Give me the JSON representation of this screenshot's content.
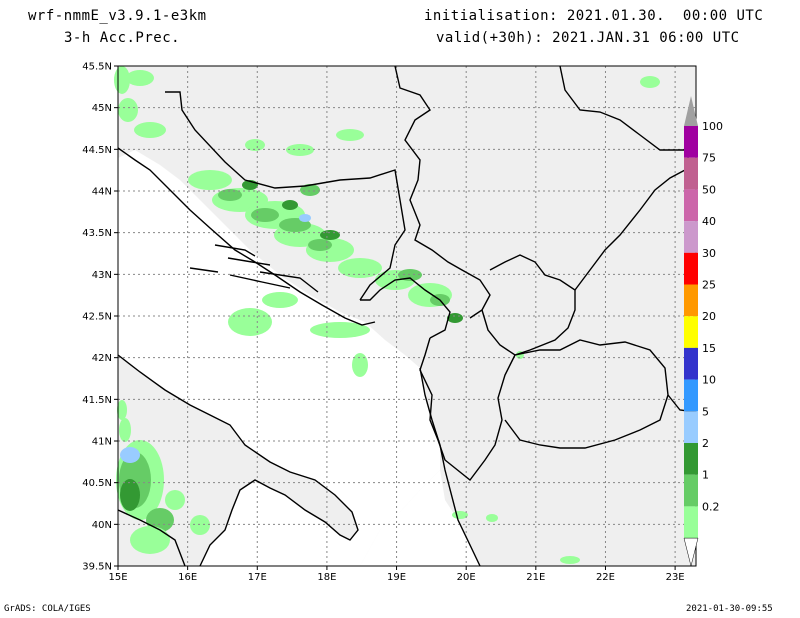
{
  "header": {
    "model": "wrf-nmmE_v3.9.1-e3km",
    "field": "3-h Acc.Prec.",
    "init": "initialisation: 2021.01.30.  00:00 UTC",
    "valid": "valid(+30h): 2021.JAN.31 06:00 UTC"
  },
  "axes": {
    "lat_labels": [
      "45.5N",
      "45N",
      "44.5N",
      "44N",
      "43.5N",
      "43N",
      "42.5N",
      "42N",
      "41.5N",
      "41N",
      "40.5N",
      "40N",
      "39.5N"
    ],
    "lon_labels": [
      "15E",
      "16E",
      "17E",
      "18E",
      "19E",
      "20E",
      "21E",
      "22E",
      "23E"
    ],
    "lat_range": [
      39.5,
      45.5
    ],
    "lon_range": [
      15,
      23.3
    ]
  },
  "legend": {
    "labels": [
      "100",
      "75",
      "50",
      "40",
      "30",
      "25",
      "20",
      "15",
      "10",
      "5",
      "2",
      "1",
      "0.2"
    ],
    "colors": [
      "#a000a0",
      "#c06090",
      "#cc66aa",
      "#cc99cc",
      "#ff0000",
      "#ff9900",
      "#ffff00",
      "#3333cc",
      "#3399ff",
      "#99ccff",
      "#339933",
      "#66cc66",
      "#99ff99"
    ],
    "below_color": "#ffffff",
    "above_color": "#a0a0a0"
  },
  "colors": {
    "land": "#efefef",
    "sea": "#ffffff",
    "grid": "#888888",
    "border": "#000000"
  },
  "footer": {
    "left": "GrADS: COLA/IGES",
    "right": "2021-01-30-09:55"
  }
}
